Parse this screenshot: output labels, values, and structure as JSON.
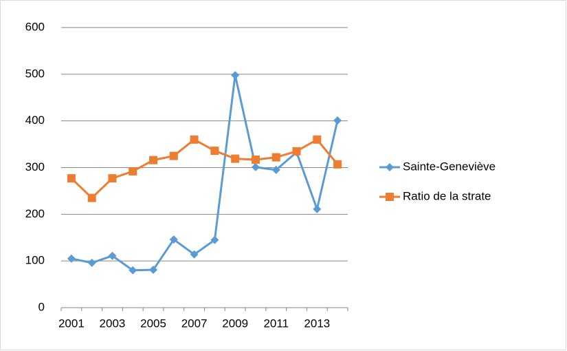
{
  "chart_data": {
    "type": "line",
    "categories": [
      "2001",
      null,
      "2003",
      null,
      "2005",
      null,
      "2007",
      null,
      "2009",
      null,
      "2011",
      null,
      "2013",
      null
    ],
    "series": [
      {
        "name": "Sainte-Geneviève",
        "color": "#5b9bd5",
        "marker": "diamond",
        "values": [
          105,
          96,
          111,
          80,
          81,
          146,
          114,
          145,
          498,
          301,
          295,
          333,
          211,
          401
        ]
      },
      {
        "name": "Ratio de la strate",
        "color": "#ed7d31",
        "marker": "square",
        "values": [
          277,
          235,
          277,
          292,
          316,
          325,
          360,
          336,
          319,
          317,
          322,
          335,
          360,
          307
        ]
      }
    ],
    "ylim": [
      0,
      600
    ],
    "yticks": [
      0,
      100,
      200,
      300,
      400,
      500,
      600
    ],
    "grid": true,
    "legend": "right"
  }
}
